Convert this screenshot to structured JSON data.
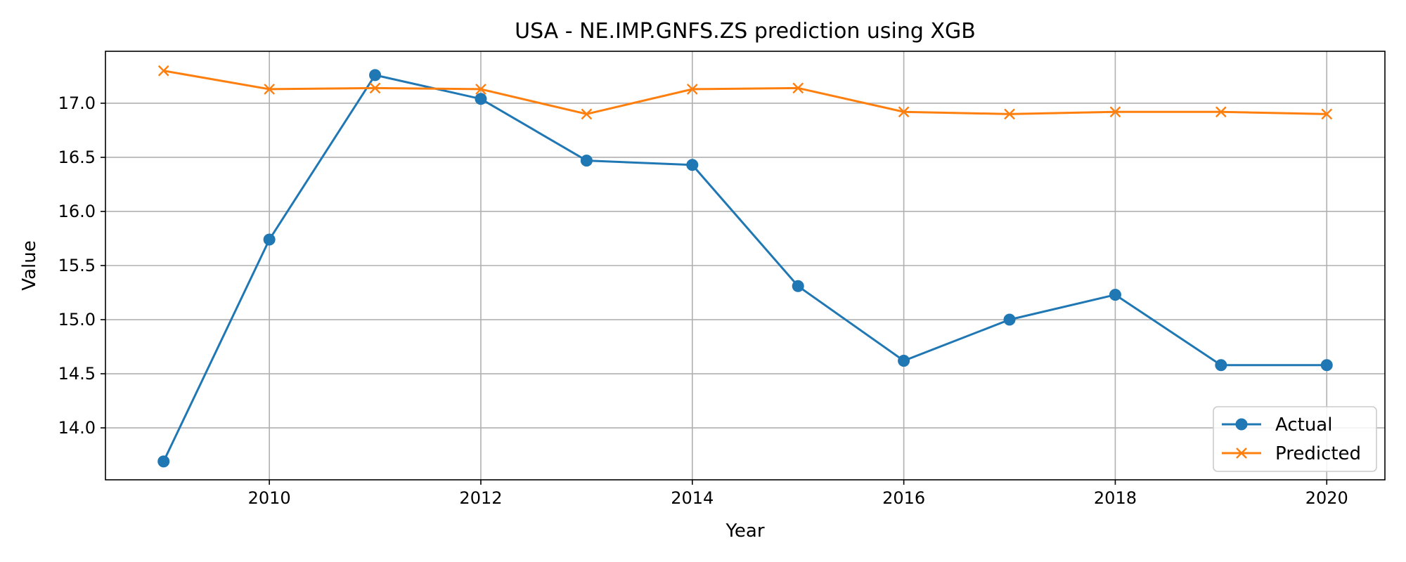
{
  "chart_data": {
    "type": "line",
    "title": "USA - NE.IMP.GNFS.ZS prediction using XGB",
    "xlabel": "Year",
    "ylabel": "Value",
    "x": [
      2009,
      2010,
      2011,
      2012,
      2013,
      2014,
      2015,
      2016,
      2017,
      2018,
      2019,
      2020
    ],
    "x_ticks": [
      2010,
      2012,
      2014,
      2016,
      2018,
      2020
    ],
    "y_ticks": [
      14.0,
      14.5,
      15.0,
      15.5,
      16.0,
      16.5,
      17.0
    ],
    "xlim": [
      2008.45,
      2020.55
    ],
    "ylim": [
      13.52,
      17.48
    ],
    "grid": true,
    "legend_position": "lower-right",
    "series": [
      {
        "name": "Actual",
        "marker": "circle",
        "color": "#1f77b4",
        "values": [
          13.69,
          15.74,
          17.26,
          17.04,
          16.47,
          16.43,
          15.31,
          14.62,
          15.0,
          15.23,
          14.58,
          14.58
        ]
      },
      {
        "name": "Predicted",
        "marker": "x",
        "color": "#ff7f0e",
        "values": [
          17.3,
          17.13,
          17.14,
          17.13,
          16.9,
          17.13,
          17.14,
          16.92,
          16.9,
          16.92,
          16.92,
          16.9
        ]
      }
    ]
  }
}
